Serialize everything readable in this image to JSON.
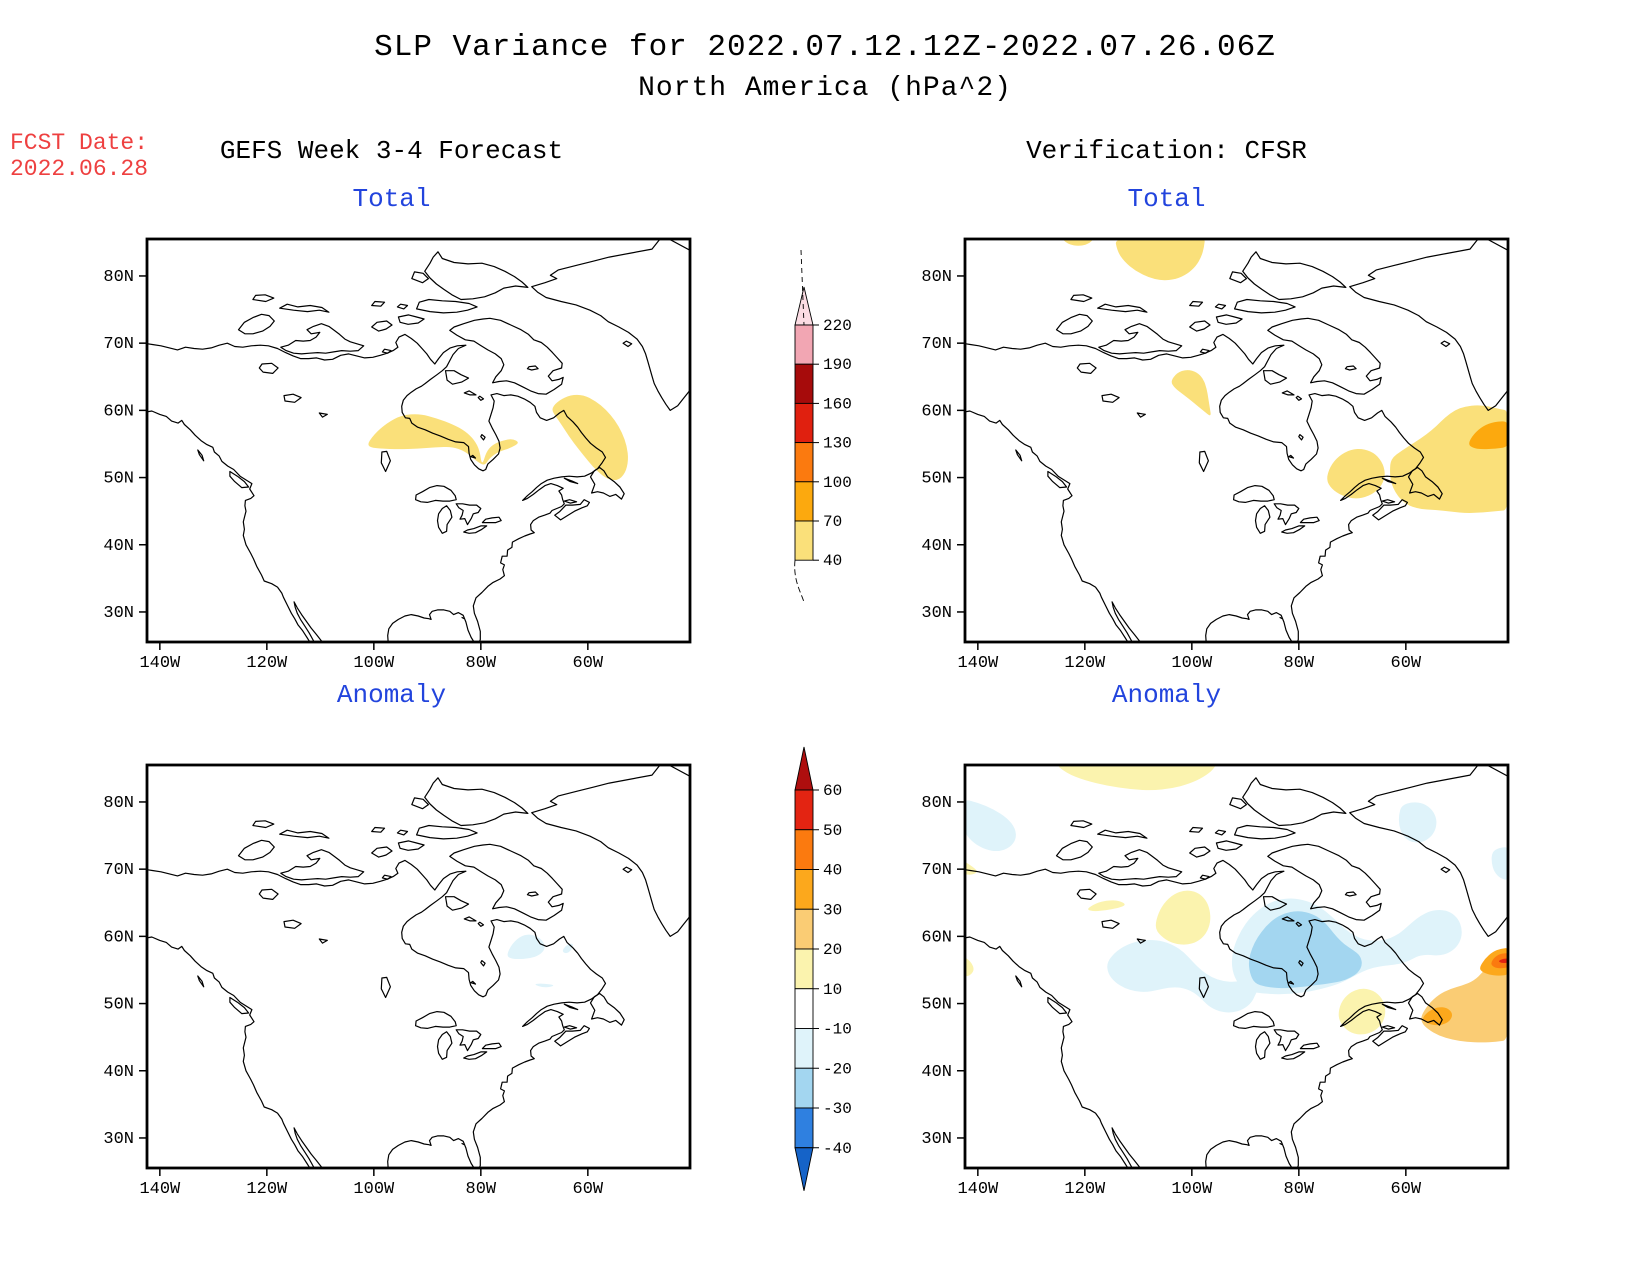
{
  "title": {
    "line1": "SLP Variance for 2022.07.12.12Z-2022.07.26.06Z",
    "line2": "North America (hPa^2)"
  },
  "fcst": {
    "label": "FCST Date:",
    "date": "2022.06.28",
    "color": "#EE4040"
  },
  "columns": {
    "left_header": "GEFS Week 3-4 Forecast",
    "right_header": "Verification: CFSR"
  },
  "accent_blue": "#2244DD",
  "axes": {
    "lat_tick_labels": [
      "80N",
      "70N",
      "60N",
      "50N",
      "40N",
      "30N"
    ],
    "lat_tick_values": [
      80,
      70,
      60,
      50,
      40,
      30
    ],
    "lon_tick_labels": [
      "140W",
      "120W",
      "100W",
      "80W",
      "60W"
    ],
    "lon_tick_values": [
      -140,
      -120,
      -100,
      -80,
      -60
    ],
    "lon_domain": [
      -142.4,
      -41.0
    ],
    "lat_domain": [
      25.5,
      85.5
    ]
  },
  "palette": {
    "total_40": "#FAE07A",
    "total_70": "#FCA90E",
    "anom_10": "#FBF3AE",
    "anom_20": "#FACC74",
    "anom_30": "#FCA81C",
    "anom_40": "#FB7A0F",
    "anom_50": "#E32412",
    "anom_-10": "#DFF3FA",
    "anom_-20": "#A3D6F0"
  },
  "colorbars": {
    "total": {
      "tick_labels": [
        "220",
        "190",
        "160",
        "130",
        "100",
        "70",
        "40"
      ],
      "segment_colors_top_to_bottom": [
        "#FBDCE3",
        "#F2A6B3",
        "#A60B0B",
        "#E0200F",
        "#FB7A0F",
        "#FCA90E",
        "#FAE07A"
      ]
    },
    "anomaly": {
      "tick_labels": [
        "60",
        "50",
        "40",
        "30",
        "20",
        "10",
        "-10",
        "-20",
        "-30",
        "-40"
      ],
      "segment_colors_top_to_bottom": [
        "#AE0E0E",
        "#E32412",
        "#FB7A0F",
        "#FCA81C",
        "#FACC74",
        "#FBF3AE",
        "#FFFFFF",
        "#DFF3FA",
        "#A3D6F0",
        "#2F80E0",
        "#1563C8"
      ]
    }
  },
  "panels": [
    {
      "id": "forecast-total",
      "title": "Total",
      "overlays": [
        {
          "region": "fc_total_hudson",
          "level": "total_40"
        },
        {
          "region": "fc_total_labsea",
          "level": "total_40"
        }
      ]
    },
    {
      "id": "cfsr-total",
      "title": "Total",
      "overlays": [
        {
          "region": "cfsr_total_arctic_top",
          "level": "total_40"
        },
        {
          "region": "cfsr_total_top_west",
          "level": "total_40"
        },
        {
          "region": "cfsr_total_keewatin",
          "level": "total_40"
        },
        {
          "region": "cfsr_total_quebec",
          "level": "total_40"
        },
        {
          "region": "cfsr_total_nfld",
          "level": "total_40"
        },
        {
          "region": "cfsr_total_nfld_orange",
          "level": "total_70"
        }
      ]
    },
    {
      "id": "forecast-anomaly",
      "title": "Anomaly",
      "overlays": [
        {
          "region": "fc_anom_nquebec1",
          "level": "anom_-10"
        },
        {
          "region": "fc_anom_nquebec2",
          "level": "anom_-10"
        },
        {
          "region": "fc_anom_sliver",
          "level": "anom_-10"
        }
      ]
    },
    {
      "id": "cfsr-anomaly",
      "title": "Anomaly",
      "overlays": [
        {
          "region": "cfsr_anom_top_band",
          "level": "anom_10"
        },
        {
          "region": "cfsr_anom_left70",
          "level": "anom_10"
        },
        {
          "region": "cfsr_anom_bear",
          "level": "anom_10"
        },
        {
          "region": "cfsr_anom_keewatin",
          "level": "anom_10"
        },
        {
          "region": "cfsr_anom_quebec_south",
          "level": "anom_10"
        },
        {
          "region": "cfsr_anom_left55",
          "level": "anom_10"
        },
        {
          "region": "cfsr_anom_nw",
          "level": "anom_-10"
        },
        {
          "region": "cfsr_anom_swband",
          "level": "anom_-10"
        },
        {
          "region": "cfsr_anom_eastring",
          "level": "anom_-10"
        },
        {
          "region": "cfsr_anom_davis",
          "level": "anom_-10"
        },
        {
          "region": "cfsr_anom_right70",
          "level": "anom_-10"
        },
        {
          "region": "cfsr_anom_hudson_blue",
          "level": "anom_-20"
        },
        {
          "region": "cfsr_anom_nfld_amber",
          "level": "anom_20"
        },
        {
          "region": "cfsr_anom_nfld_orange",
          "level": "anom_30"
        },
        {
          "region": "cfsr_anom_edge_orange",
          "level": "anom_30"
        },
        {
          "region": "cfsr_anom_edge_deep",
          "level": "anom_40"
        },
        {
          "region": "cfsr_anom_edge_core",
          "level": "anom_50"
        }
      ]
    }
  ],
  "chart_data": {
    "type": "heatmap",
    "units": "hPa^2",
    "description": "SLP variance maps over North America; GEFS Week 3-4 forecast vs CFSR verification, total field and anomaly field",
    "total_scale_levels": [
      40,
      70,
      100,
      130,
      160,
      190,
      220
    ],
    "anomaly_scale_levels": [
      -40,
      -30,
      -20,
      -10,
      10,
      20,
      30,
      40,
      50,
      60
    ]
  }
}
